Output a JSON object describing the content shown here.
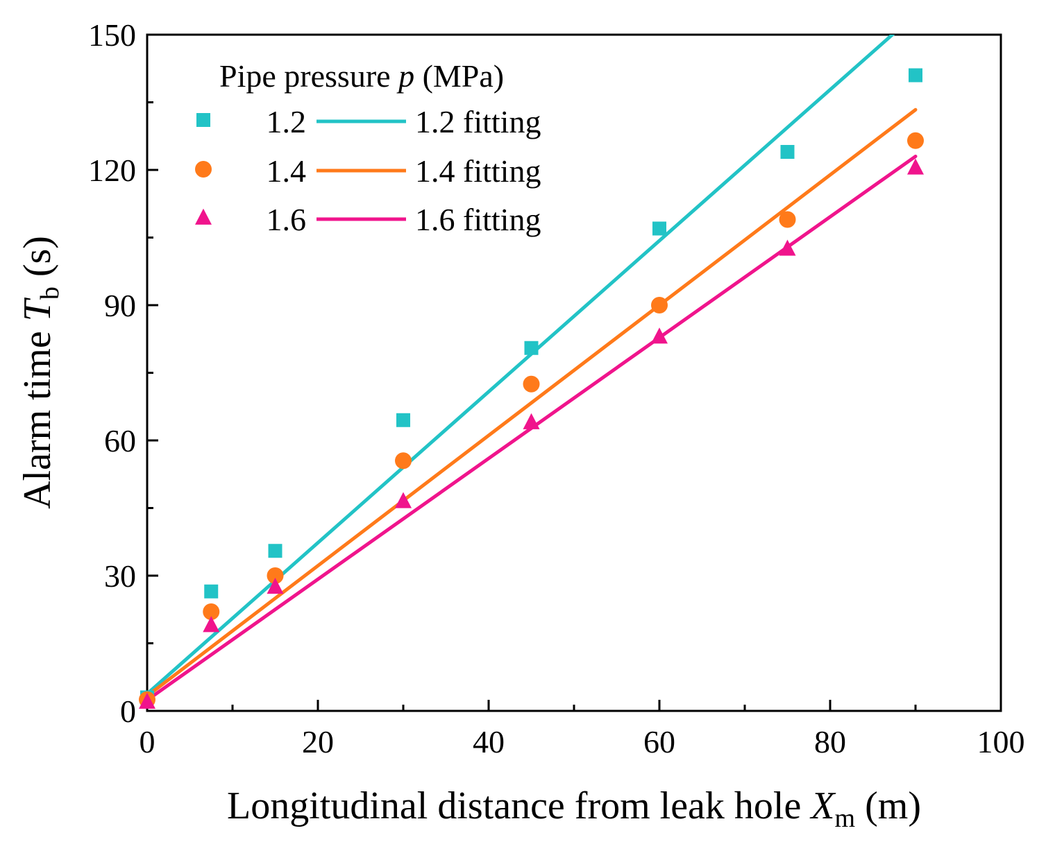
{
  "chart_data": {
    "type": "scatter",
    "xlabel": {
      "prefix": "Longitudinal distance from leak hole ",
      "symbol": "X",
      "subscript": "m",
      "suffix": " (m)"
    },
    "ylabel": {
      "prefix": "Alarm time ",
      "symbol": "T",
      "subscript": "b",
      "suffix": " (s)"
    },
    "xlim": [
      0,
      100
    ],
    "ylim": [
      0,
      150
    ],
    "xticks": [
      0,
      20,
      40,
      60,
      80,
      100
    ],
    "yticks": [
      0,
      30,
      60,
      90,
      120,
      150
    ],
    "xtick_labels": [
      "0",
      "20",
      "40",
      "60",
      "80",
      "100"
    ],
    "ytick_labels": [
      "0",
      "30",
      "60",
      "90",
      "120",
      "150"
    ],
    "x_minor_step": 10,
    "y_minor_step": 15,
    "legend": {
      "title_prefix": "Pipe pressure ",
      "title_symbol": "p",
      "title_suffix": " (MPa)",
      "position": "top-left"
    },
    "series": [
      {
        "name": "1.2",
        "fit_name": "1.2 fitting",
        "marker": "square",
        "color": "#22C3C6",
        "x": [
          0,
          7.5,
          15,
          30,
          45,
          60,
          75,
          90
        ],
        "y": [
          3,
          26.5,
          35.5,
          64.5,
          80.5,
          107,
          124,
          141
        ],
        "fit": {
          "slope": 1.675,
          "intercept": 3.8,
          "x_range": [
            0,
            90
          ]
        }
      },
      {
        "name": "1.4",
        "fit_name": "1.4 fitting",
        "marker": "circle",
        "color": "#FF7A1A",
        "x": [
          0,
          7.5,
          15,
          30,
          45,
          60,
          75,
          90
        ],
        "y": [
          2.5,
          22,
          30,
          55.5,
          72.5,
          90,
          109,
          126.5
        ],
        "fit": {
          "slope": 1.445,
          "intercept": 3.3,
          "x_range": [
            0,
            90
          ]
        }
      },
      {
        "name": "1.6",
        "fit_name": "1.6 fitting",
        "marker": "triangle",
        "color": "#F0148C",
        "x": [
          0,
          7.5,
          15,
          30,
          45,
          60,
          75,
          90
        ],
        "y": [
          2,
          19,
          27.5,
          46.5,
          64,
          83,
          102.5,
          120.5
        ],
        "fit": {
          "slope": 1.34,
          "intercept": 2.4,
          "x_range": [
            0,
            90
          ]
        }
      }
    ]
  }
}
